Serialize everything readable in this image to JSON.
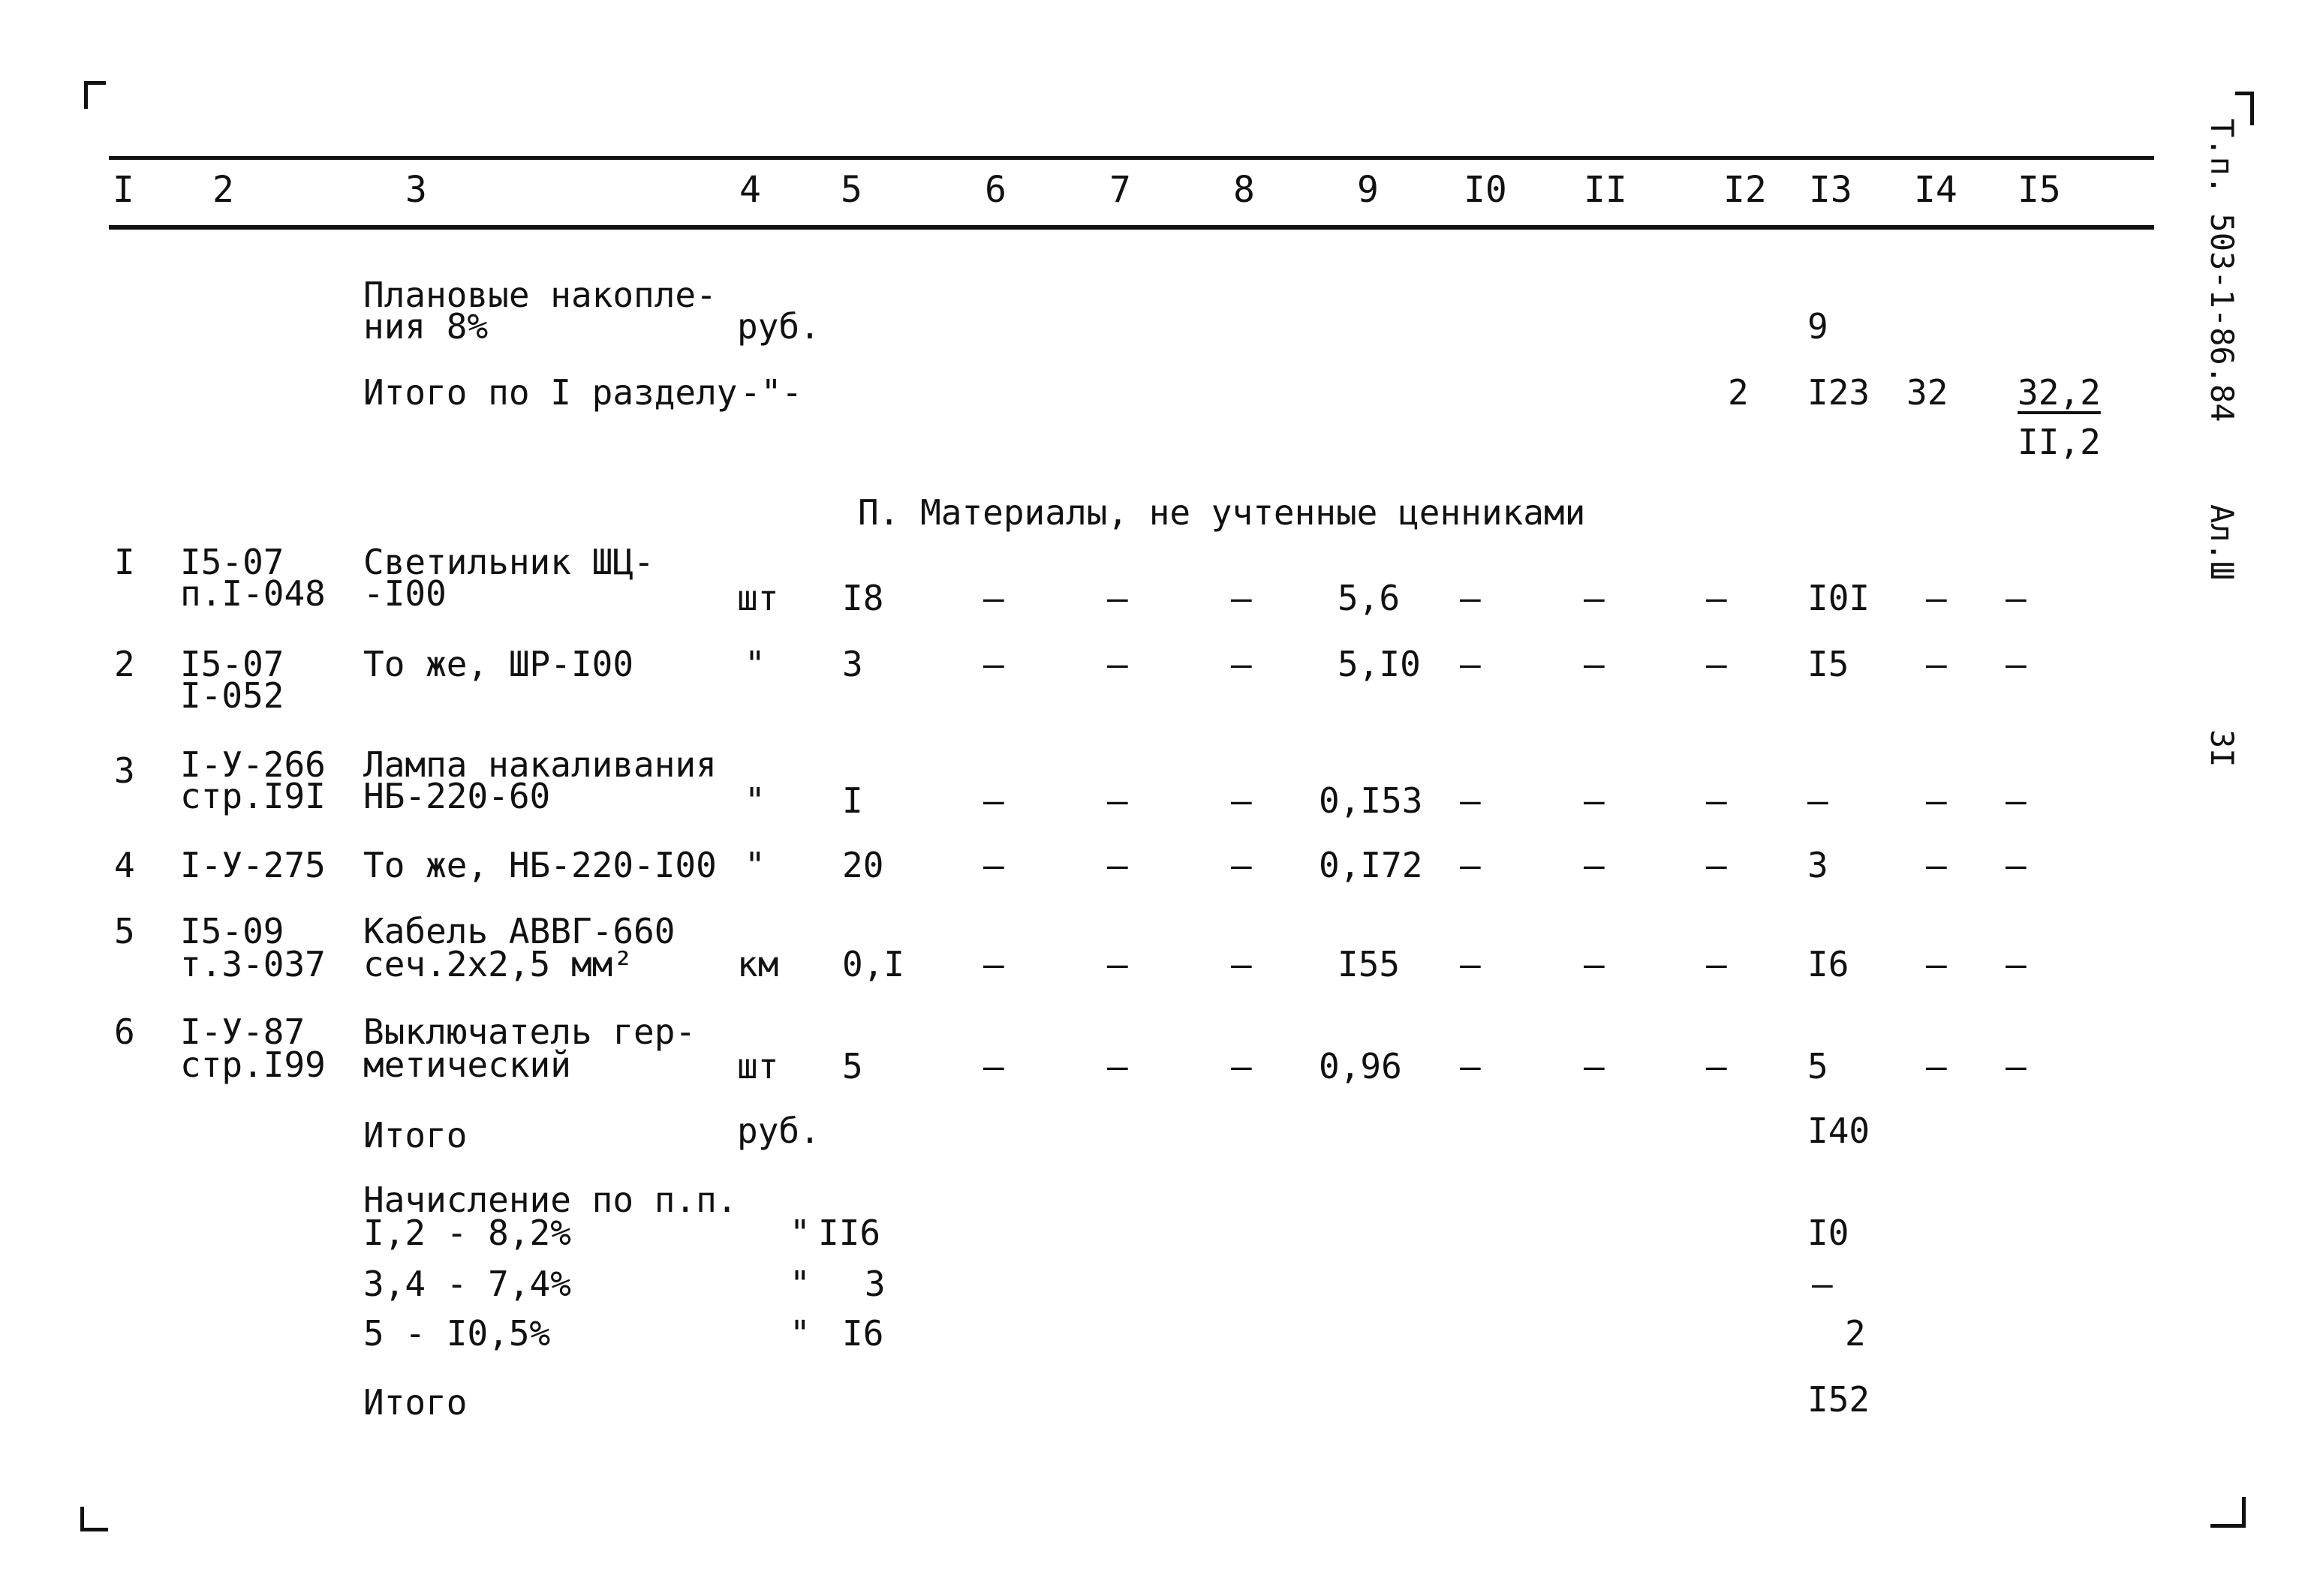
{
  "columns": [
    "I",
    "2",
    "3",
    "4",
    "5",
    "6",
    "7",
    "8",
    "9",
    "I0",
    "II",
    "I2",
    "I3",
    "I4",
    "I5"
  ],
  "side": {
    "code": "Т.п. 503-1-86.84",
    "album": "Ал.Ш",
    "page": "3I"
  },
  "top": {
    "planned_line1": "Плановые накопле-",
    "planned_line2": "ния 8%",
    "planned_unit": "руб.",
    "planned_c13": "9",
    "total1_label": "Итого по I разделу",
    "total1_unit": "-\"-",
    "total1_c12": "2",
    "total1_c13": "I23",
    "total1_c14": "32",
    "total1_c15_top": "32,2",
    "total1_c15_bottom": "II,2"
  },
  "section_title": "П. Материалы, не учтенные ценниками",
  "dash": "–",
  "rows": [
    {
      "n": "I",
      "code1": "I5-07",
      "code2": "п.I-048",
      "name1": "Светильник ШЦ-",
      "name2": "-I00",
      "unit": "шт",
      "qty": "I8",
      "c9": "5,6",
      "c13": "I0I",
      "c14": "–",
      "c15": "–"
    },
    {
      "n": "2",
      "code1": "I5-07",
      "code2": "I-052",
      "name1": "То же, ШР-I00",
      "name2": "",
      "unit": "\"",
      "qty": "3",
      "c9": "5,I0",
      "c13": "I5",
      "c14": "–",
      "c15": "–"
    },
    {
      "n": "3",
      "code1": "I-У-266",
      "code2": "стр.I9I",
      "name1": "Лампа накаливания",
      "name2": "НБ-220-60",
      "unit": "\"",
      "qty": "I",
      "c9": "0,I53",
      "c13": "–",
      "c14": "–",
      "c15": "–"
    },
    {
      "n": "4",
      "code1": "I-У-275",
      "code2": "",
      "name1": "То же, НБ-220-I00",
      "name2": "",
      "unit": "\"",
      "qty": "20",
      "c9": "0,I72",
      "c13": "3",
      "c14": "–",
      "c15": "–"
    },
    {
      "n": "5",
      "code1": "I5-09",
      "code2": "т.3-037",
      "name1": "Кабель АВВГ-660",
      "name2": "сеч.2х2,5 мм²",
      "unit": "км",
      "qty": "0,I",
      "c9": "I55",
      "c13": "I6",
      "c14": "–",
      "c15": "–"
    },
    {
      "n": "6",
      "code1": "I-У-87",
      "code2": "стр.I99",
      "name1": "Выключатель гер-",
      "name2": "метический",
      "unit": "шт",
      "qty": "5",
      "c9": "0,96",
      "c13": "5",
      "c14": "–",
      "c15": "–"
    }
  ],
  "bottom": {
    "itogo1": "Итого",
    "itogo1_unit": "руб.",
    "itogo1_c13": "I40",
    "accr_line1": "Начисление по п.п.",
    "accr1": "I,2 - 8,2%",
    "accr1_unit": "\"",
    "accr1_base": "II6",
    "accr1_c13": "I0",
    "accr2": "3,4 - 7,4%",
    "accr2_unit": "\"",
    "accr2_base": "3",
    "accr2_c13": "–",
    "accr3": "5   - I0,5%",
    "accr3_unit": "\"",
    "accr3_base": "I6",
    "accr3_c13": "2",
    "itogo2": "Итого",
    "itogo2_c13": "I52"
  }
}
